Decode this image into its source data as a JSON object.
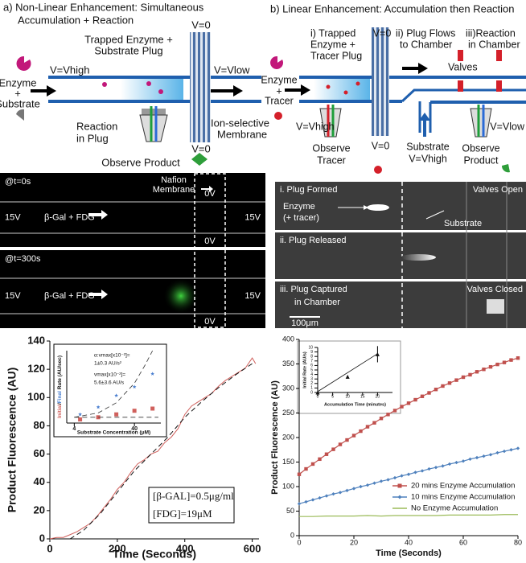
{
  "panel_a": {
    "title_lines": [
      "a) Non-Linear Enhancement:  Simultaneous",
      "Accumulation + Reaction"
    ],
    "labels": [
      "Trapped Enzyme +",
      "Substrate Plug",
      "V=0",
      "V=Vhigh",
      "V=Vlow",
      "Enzyme",
      "+",
      "Substrate",
      "Reaction",
      "in Plug",
      "Ion-selective",
      "Membrane",
      "V=0",
      "Observe Product"
    ]
  },
  "panel_b": {
    "title": "b) Linear Enhancement: Accumulation then Reaction",
    "labels": [
      "i) Trapped",
      "Enzyme +",
      "Tracer Plug",
      "V=0",
      "ii) Plug Flows",
      "to Chamber",
      "iii)Reaction",
      "in Chamber",
      "Valves",
      "Enzyme",
      "+",
      "Tracer",
      "V=Vhigh",
      "V=0",
      "Observe",
      "Tracer",
      "Substrate",
      "V=Vhigh",
      "Observe",
      "Product",
      "V=Vlow"
    ]
  },
  "micrograph_a": {
    "membrane_lines": [
      "Nafion",
      "Membrane"
    ],
    "frames": [
      {
        "time": "@t=0s",
        "left": "15V",
        "flow": "β-Gal + FDG",
        "right": "15V",
        "top": "0V",
        "bottom": "0V"
      },
      {
        "time": "@t=300s",
        "left": "15V",
        "flow": "β-Gal + FDG",
        "right": "15V",
        "bottom": "0V"
      }
    ]
  },
  "micrograph_b": {
    "frames": [
      "i. Plug Formed",
      "ii. Plug Released",
      "iii. Plug Captured"
    ],
    "frame_3_line_2": "in Chamber",
    "valves_open": "Valves Open",
    "valves_closed": "Valves Closed",
    "enzyme": "Enzyme",
    "tracer": "(+ tracer)",
    "substrate": "Substrate",
    "scale": "100μm"
  },
  "chart_data": [
    {
      "type": "line",
      "x_label": "Time (Seconds)",
      "y_label": "Product Fluorescence (AU)",
      "xlim": [
        0,
        620
      ],
      "ylim": [
        0,
        140
      ],
      "xticks": [
        0,
        200,
        400,
        600
      ],
      "yticks": [
        0,
        20,
        40,
        60,
        80,
        100,
        120,
        140
      ],
      "annotations": [
        "[β-GAL]=0.5μg/ml",
        "[FDG]=19μM"
      ],
      "series": [
        {
          "color": "#d0605c",
          "x": [
            0,
            20,
            40,
            60,
            80,
            100,
            120,
            140,
            160,
            180,
            200,
            220,
            240,
            260,
            280,
            300,
            320,
            340,
            360,
            380,
            400,
            420,
            440,
            460,
            480,
            500,
            520,
            540,
            560,
            580,
            600,
            610
          ],
          "values": [
            0,
            1,
            1,
            3,
            5,
            8,
            11,
            16,
            22,
            28,
            35,
            40,
            47,
            53,
            56,
            60,
            62,
            68,
            72,
            78,
            88,
            94,
            97,
            100,
            103,
            108,
            112,
            115,
            118,
            121,
            128,
            124
          ]
        },
        {
          "color": "#111111",
          "dash": true,
          "x": [
            60,
            100,
            150,
            200,
            250,
            300,
            350,
            400,
            450,
            500,
            550,
            600
          ],
          "values": [
            0,
            6,
            18,
            33,
            48,
            60,
            72,
            86,
            97,
            107,
            116,
            124
          ]
        }
      ]
    },
    {
      "type": "scatter",
      "x_label": "Substrate Concentration (μM)",
      "y_label_parts": [
        {
          "text": "Initial",
          "color": "#d0605c"
        },
        {
          "text": "/"
        },
        {
          "text": "Final",
          "color": "#4a7fd0"
        },
        {
          "text": " Rate (AU/sec)"
        }
      ],
      "xlog": true,
      "xlim": [
        3,
        110
      ],
      "ylim": [
        0,
        1
      ],
      "xticks": [
        4,
        40
      ],
      "annotations": [
        "α:vmax[x10⁻²]=",
        "1±0.3 AU/s²",
        "vmax[x10⁻²]=",
        "5.6±3.6 AU/s"
      ],
      "series": [
        {
          "color": "#4a7fd0",
          "marker": "star",
          "x": [
            5,
            10,
            20,
            40,
            80
          ],
          "values": [
            0.12,
            0.22,
            0.38,
            0.5,
            0.68
          ]
        },
        {
          "color": "#d0605c",
          "marker": "square",
          "x": [
            5,
            10,
            20,
            40,
            80
          ],
          "values": [
            0.05,
            0.08,
            0.12,
            0.17,
            0.2
          ]
        },
        {
          "color": "#333333",
          "dash": true,
          "x": [
            4,
            10,
            20,
            40,
            60,
            80
          ],
          "values": [
            0.08,
            0.14,
            0.28,
            0.55,
            0.8,
            1
          ]
        },
        {
          "color": "#333333",
          "dash": true,
          "x": [
            4,
            100
          ],
          "values": [
            0.08,
            0.08
          ]
        }
      ]
    },
    {
      "type": "line",
      "x_label": "Time (Seconds)",
      "y_label": "Product Fluorescence (AU)",
      "xlim": [
        0,
        80
      ],
      "ylim": [
        0,
        400
      ],
      "xticks": [
        0,
        20,
        40,
        60,
        80
      ],
      "yticks": [
        0,
        50,
        100,
        150,
        200,
        250,
        300,
        350,
        400
      ],
      "legend": "bottom-right",
      "series": [
        {
          "name": "20 mins Enzyme Accumulation",
          "color": "#c0504d",
          "marker": "square",
          "x": [
            0,
            2.5,
            5,
            7.5,
            10,
            12.5,
            15,
            17.5,
            20,
            22.5,
            25,
            27.5,
            30,
            32.5,
            35,
            37.5,
            40,
            42.5,
            45,
            47.5,
            50,
            52.5,
            55,
            57.5,
            60,
            62.5,
            65,
            67.5,
            70,
            72.5,
            75,
            77.5,
            80
          ],
          "values": [
            125,
            136,
            146,
            156,
            166,
            176,
            186,
            195,
            204,
            213,
            222,
            230,
            239,
            247,
            255,
            263,
            270,
            277,
            284,
            291,
            298,
            305,
            311,
            317,
            323,
            328,
            334,
            339,
            344,
            349,
            353,
            358,
            362
          ]
        },
        {
          "name": "10 mins Enzyme Accumulation",
          "color": "#4f81bd",
          "marker": "diamond",
          "x": [
            0,
            2.5,
            5,
            7.5,
            10,
            12.5,
            15,
            17.5,
            20,
            22.5,
            25,
            27.5,
            30,
            32.5,
            35,
            37.5,
            40,
            42.5,
            45,
            47.5,
            50,
            52.5,
            55,
            57.5,
            60,
            62.5,
            65,
            67.5,
            70,
            72.5,
            75,
            77.5,
            80
          ],
          "values": [
            65,
            69,
            73,
            77,
            81,
            85,
            88,
            92,
            96,
            100,
            103,
            107,
            111,
            114,
            118,
            122,
            125,
            129,
            132,
            136,
            139,
            142,
            146,
            149,
            152,
            156,
            159,
            162,
            165,
            169,
            172,
            175,
            178
          ]
        },
        {
          "name": "No Enzyme Accumulation",
          "color": "#9bbb59",
          "x": [
            0,
            5,
            10,
            15,
            20,
            25,
            30,
            35,
            40,
            45,
            50,
            55,
            60,
            65,
            70,
            75,
            80
          ],
          "values": [
            39,
            39,
            40,
            40,
            40,
            41,
            40,
            41,
            41,
            41,
            41,
            42,
            42,
            42,
            42,
            43,
            43
          ]
        }
      ]
    },
    {
      "type": "scatter",
      "x_label": "Accumulation Time (minutes)",
      "y_label": "Initial Rate (AU/s)",
      "xlim": [
        0,
        25
      ],
      "ylim": [
        0,
        10
      ],
      "xticks": [
        0,
        5,
        10,
        15,
        20
      ],
      "yticks": [
        0,
        1,
        2,
        3,
        4,
        5,
        6,
        7,
        8,
        9,
        10
      ],
      "series": [
        {
          "color": "#111111",
          "marker": "triangle",
          "x": [
            0,
            10,
            20
          ],
          "values": [
            0,
            3.5,
            8.5
          ],
          "errors": [
            null,
            null,
            1.8
          ]
        },
        {
          "color": "#111111",
          "x": [
            0,
            20
          ],
          "values": [
            0.2,
            8.6
          ]
        }
      ]
    }
  ]
}
